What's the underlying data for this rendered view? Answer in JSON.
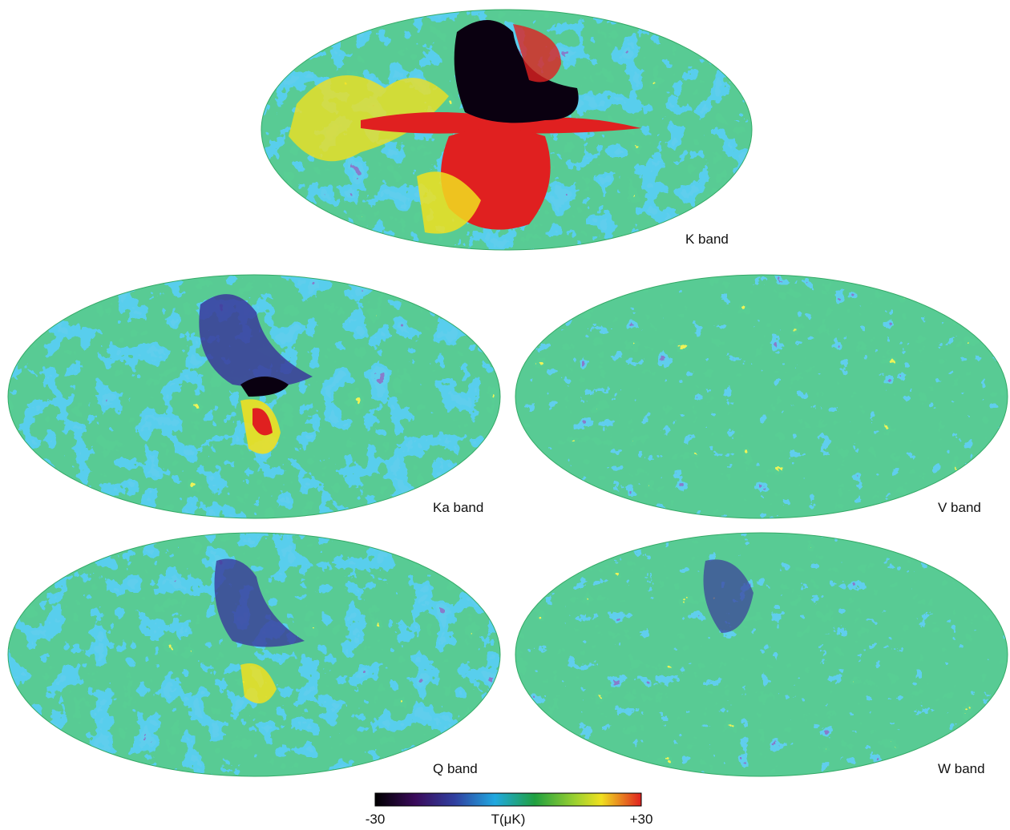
{
  "panels": [
    {
      "label": "K band"
    },
    {
      "label": "Ka band"
    },
    {
      "label": "V band"
    },
    {
      "label": "Q band"
    },
    {
      "label": "W band"
    }
  ],
  "colorbar": {
    "min_label": "-30",
    "title": "T(μK)",
    "max_label": "+30"
  }
}
